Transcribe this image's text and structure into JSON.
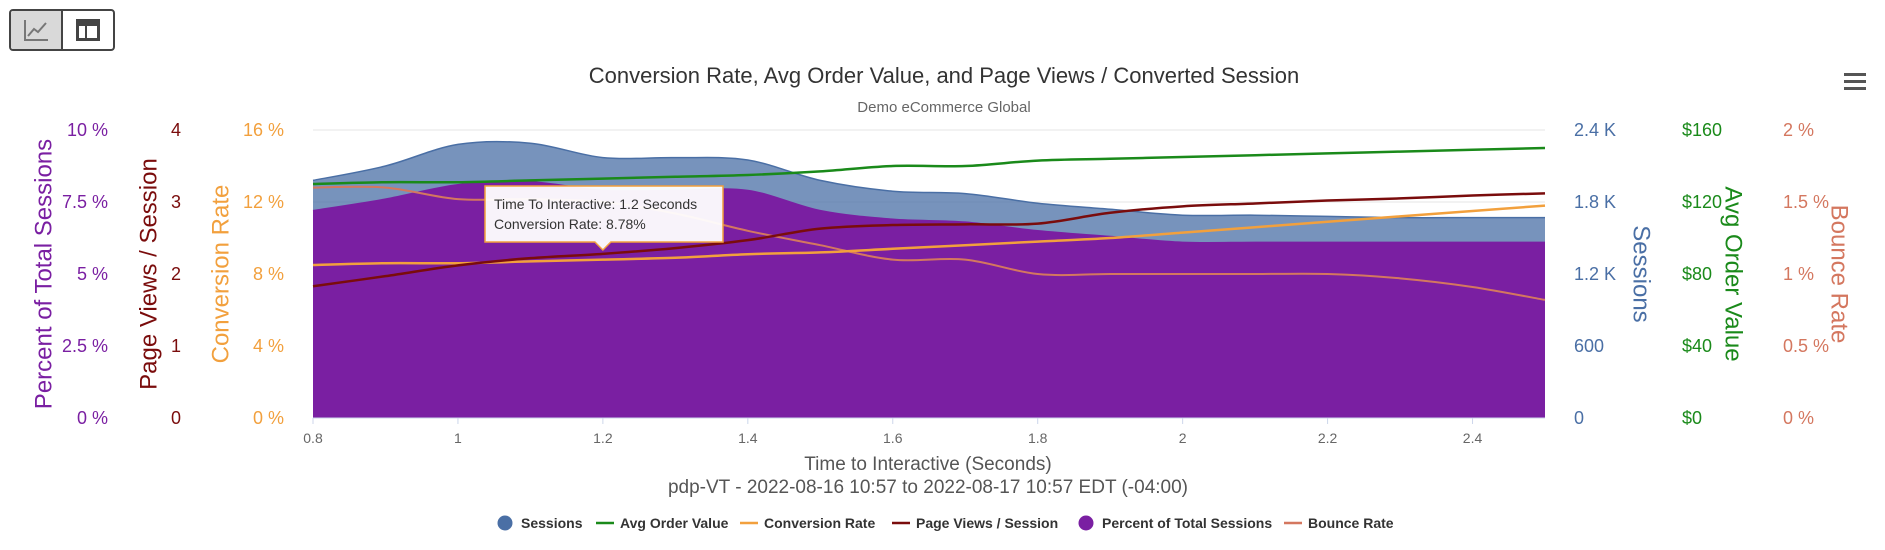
{
  "toolbar": {
    "chart_view_icon": "line-chart-icon",
    "table_view_icon": "table-icon",
    "menu_icon": "hamburger-menu-icon"
  },
  "colors": {
    "sessions": "#4a6fa5",
    "avg_order_value": "#1a8a1a",
    "conversion_rate": "#f2a03d",
    "page_views": "#7a0c0c",
    "percent_sessions": "#7a1fa2",
    "bounce_rate": "#d4775f"
  },
  "chart_data": {
    "type": "area",
    "title": "Conversion Rate, Avg Order Value, and Page Views / Converted Session",
    "subtitle": "Demo eCommerce Global",
    "xlabel": "Time to Interactive (Seconds)",
    "xsubtitle": "pdp-VT - 2022-08-16 10:57 to 2022-08-17 10:57 EDT (-04:00)",
    "xlim": [
      0.8,
      2.5
    ],
    "x_ticks": [
      0.8,
      1,
      1.2,
      1.4,
      1.6,
      1.8,
      2,
      2.2,
      2.4
    ],
    "x_tick_labels": [
      "0.8",
      "1",
      "1.2",
      "1.4",
      "1.6",
      "1.8",
      "2",
      "2.2",
      "2.4"
    ],
    "axes": [
      {
        "key": "percent",
        "title": "Percent of Total Sessions",
        "side": "left",
        "range": [
          0,
          10
        ],
        "tick_labels": [
          "0 %",
          "2.5 %",
          "5 %",
          "7.5 %",
          "10 %"
        ]
      },
      {
        "key": "pageviews",
        "title": "Page Views / Session",
        "side": "left",
        "range": [
          0,
          4
        ],
        "tick_labels": [
          "0",
          "1",
          "2",
          "3",
          "4"
        ]
      },
      {
        "key": "conversion",
        "title": "Conversion Rate",
        "side": "left",
        "range": [
          0,
          16
        ],
        "tick_labels": [
          "0 %",
          "4 %",
          "8 %",
          "12 %",
          "16 %"
        ]
      },
      {
        "key": "sessions",
        "title": "Sessions",
        "side": "right",
        "range": [
          0,
          2400
        ],
        "tick_labels": [
          "0",
          "600",
          "1.2 K",
          "1.8 K",
          "2.4 K"
        ]
      },
      {
        "key": "aov",
        "title": "Avg Order Value",
        "side": "right",
        "range": [
          0,
          160
        ],
        "tick_labels": [
          "$0",
          "$40",
          "$80",
          "$120",
          "$160"
        ]
      },
      {
        "key": "bounce",
        "title": "Bounce Rate",
        "side": "right",
        "range": [
          0,
          2
        ],
        "tick_labels": [
          "0 %",
          "0.5 %",
          "1 %",
          "1.5 %",
          "2 %"
        ]
      }
    ],
    "x": [
      0.8,
      0.9,
      1.0,
      1.1,
      1.2,
      1.3,
      1.4,
      1.5,
      1.6,
      1.7,
      1.8,
      1.9,
      2.0,
      2.1,
      2.2,
      2.3,
      2.4,
      2.5
    ],
    "series": [
      {
        "name": "Sessions",
        "axis": "sessions",
        "kind": "area",
        "values": [
          1980,
          2100,
          2280,
          2290,
          2170,
          2170,
          2150,
          1980,
          1890,
          1870,
          1790,
          1740,
          1690,
          1690,
          1680,
          1670,
          1670,
          1670
        ]
      },
      {
        "name": "Avg Order Value",
        "axis": "aov",
        "kind": "line",
        "values": [
          130,
          131,
          131,
          132,
          133,
          134,
          135,
          137,
          140,
          140,
          143,
          144,
          145,
          146,
          147,
          148,
          149,
          150
        ]
      },
      {
        "name": "Conversion Rate",
        "axis": "conversion",
        "kind": "line",
        "values": [
          8.5,
          8.6,
          8.6,
          8.7,
          8.8,
          8.9,
          9.1,
          9.2,
          9.4,
          9.6,
          9.8,
          10.0,
          10.3,
          10.6,
          10.9,
          11.2,
          11.5,
          11.8
        ]
      },
      {
        "name": "Page Views / Session",
        "axis": "pageviews",
        "kind": "line",
        "values": [
          1.83,
          1.97,
          2.12,
          2.22,
          2.28,
          2.36,
          2.47,
          2.63,
          2.68,
          2.69,
          2.7,
          2.85,
          2.94,
          2.98,
          3.02,
          3.05,
          3.09,
          3.12
        ]
      },
      {
        "name": "Percent of Total Sessions",
        "axis": "percent",
        "kind": "area",
        "values": [
          7.2,
          7.6,
          8.1,
          8.2,
          7.9,
          7.9,
          7.9,
          7.2,
          6.9,
          6.8,
          6.5,
          6.3,
          6.1,
          6.1,
          6.1,
          6.1,
          6.1,
          6.1
        ]
      },
      {
        "name": "Bounce Rate",
        "axis": "bounce",
        "kind": "line",
        "values": [
          1.6,
          1.6,
          1.52,
          1.52,
          1.5,
          1.42,
          1.3,
          1.2,
          1.1,
          1.1,
          1.0,
          1.0,
          1.0,
          1.0,
          1.0,
          0.97,
          0.91,
          0.82
        ]
      }
    ],
    "legend": [
      "Sessions",
      "Avg Order Value",
      "Conversion Rate",
      "Page Views / Session",
      "Percent of Total Sessions",
      "Bounce Rate"
    ],
    "legend_position": "bottom-center",
    "tooltip": {
      "x": 1.2,
      "series_axis": "conversion",
      "value": 8.78,
      "line1": "Time To Interactive: 1.2 Seconds",
      "line2": "Conversion Rate: 8.78%"
    }
  }
}
